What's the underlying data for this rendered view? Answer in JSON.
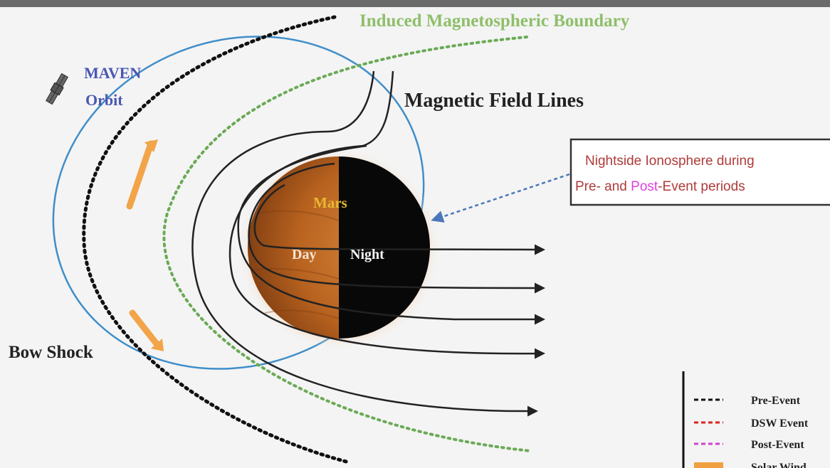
{
  "labels": {
    "imb": "Induced Magnetospheric Boundary",
    "maven_1": "MAVEN",
    "maven_2": "Orbit",
    "field_lines": "Magnetic Field Lines",
    "mars": "Mars",
    "day": "Day",
    "night": "Night",
    "bow_shock": "Bow Shock"
  },
  "callout": {
    "line1": "Nightside Ionosphere during",
    "line2_a": "Pre- and ",
    "line2_b": "Post",
    "line2_c": "-Event periods"
  },
  "legend": {
    "items": [
      {
        "label": "Pre-Event",
        "color": "#111111",
        "style": "dashed"
      },
      {
        "label": "DSW Event",
        "color": "#e02020",
        "style": "dashed"
      },
      {
        "label": "Post-Event",
        "color": "#cc44cc",
        "style": "dashed"
      },
      {
        "label": "Solar Wind",
        "color": "#f0a040",
        "style": "solid"
      }
    ]
  },
  "colors": {
    "background": "#f4f4f4",
    "top_band": "#6a6a6a",
    "bow_shock": "#111111",
    "imb": "#6aaa55",
    "imb_label": "#8fbf6a",
    "maven_orbit": "#3f8ec9",
    "maven_label": "#4a57b3",
    "field_lines": "#222222",
    "solar_wind_arrows": "#f2a448",
    "callout_border": "#333333",
    "callout_text": "#b03a3a",
    "callout_highlight": "#e040e0",
    "callout_arrow": "#4a78b8",
    "mars_day": "#b8621f",
    "mars_night": "#080808",
    "mars_label": "#e8b830"
  }
}
